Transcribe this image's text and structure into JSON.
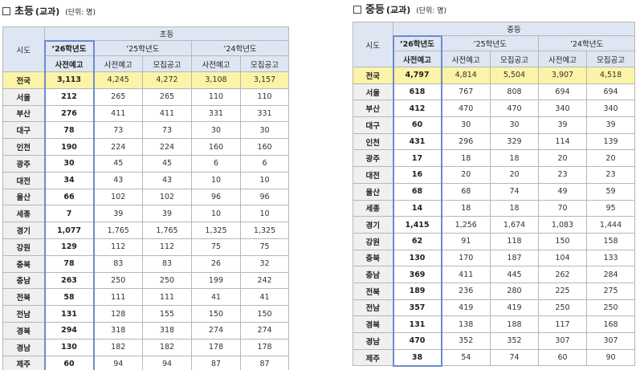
{
  "elementary": {
    "title": "초등",
    "subtitle": "(교과)",
    "unit": "(단위: 명)",
    "col_region": "시도",
    "col_group": "초등",
    "years": [
      "’26학년도",
      "’25학년도",
      "’24학년도"
    ],
    "sub_pre": "사전예고",
    "sub_rec": "모집공고",
    "rows": [
      {
        "r": "전국",
        "a": "3,113",
        "b": "4,245",
        "c": "4,272",
        "d": "3,108",
        "e": "3,157"
      },
      {
        "r": "서울",
        "a": "212",
        "b": "265",
        "c": "265",
        "d": "110",
        "e": "110"
      },
      {
        "r": "부산",
        "a": "276",
        "b": "411",
        "c": "411",
        "d": "331",
        "e": "331"
      },
      {
        "r": "대구",
        "a": "78",
        "b": "73",
        "c": "73",
        "d": "30",
        "e": "30"
      },
      {
        "r": "인천",
        "a": "190",
        "b": "224",
        "c": "224",
        "d": "160",
        "e": "160"
      },
      {
        "r": "광주",
        "a": "30",
        "b": "45",
        "c": "45",
        "d": "6",
        "e": "6"
      },
      {
        "r": "대전",
        "a": "34",
        "b": "43",
        "c": "43",
        "d": "10",
        "e": "10"
      },
      {
        "r": "울산",
        "a": "66",
        "b": "102",
        "c": "102",
        "d": "96",
        "e": "96"
      },
      {
        "r": "세종",
        "a": "7",
        "b": "39",
        "c": "39",
        "d": "10",
        "e": "10"
      },
      {
        "r": "경기",
        "a": "1,077",
        "b": "1,765",
        "c": "1,765",
        "d": "1,325",
        "e": "1,325"
      },
      {
        "r": "강원",
        "a": "129",
        "b": "112",
        "c": "112",
        "d": "75",
        "e": "75"
      },
      {
        "r": "충북",
        "a": "78",
        "b": "83",
        "c": "83",
        "d": "26",
        "e": "32"
      },
      {
        "r": "충남",
        "a": "263",
        "b": "250",
        "c": "250",
        "d": "199",
        "e": "242"
      },
      {
        "r": "전북",
        "a": "58",
        "b": "111",
        "c": "111",
        "d": "41",
        "e": "41"
      },
      {
        "r": "전남",
        "a": "131",
        "b": "128",
        "c": "155",
        "d": "150",
        "e": "150"
      },
      {
        "r": "경북",
        "a": "294",
        "b": "318",
        "c": "318",
        "d": "274",
        "e": "274"
      },
      {
        "r": "경남",
        "a": "130",
        "b": "182",
        "c": "182",
        "d": "178",
        "e": "178"
      },
      {
        "r": "제주",
        "a": "60",
        "b": "94",
        "c": "94",
        "d": "87",
        "e": "87"
      }
    ]
  },
  "secondary": {
    "title": "중등",
    "subtitle": "(교과)",
    "unit": "(단위: 명)",
    "col_region": "시도",
    "col_group": "중등",
    "years": [
      "’26학년도",
      "’25학년도",
      "’24학년도"
    ],
    "sub_pre": "사전예고",
    "sub_rec": "모집공고",
    "rows": [
      {
        "r": "전국",
        "a": "4,797",
        "b": "4,814",
        "c": "5,504",
        "d": "3,907",
        "e": "4,518"
      },
      {
        "r": "서울",
        "a": "618",
        "b": "767",
        "c": "808",
        "d": "694",
        "e": "694"
      },
      {
        "r": "부산",
        "a": "412",
        "b": "470",
        "c": "470",
        "d": "340",
        "e": "340"
      },
      {
        "r": "대구",
        "a": "60",
        "b": "30",
        "c": "30",
        "d": "39",
        "e": "39"
      },
      {
        "r": "인천",
        "a": "431",
        "b": "296",
        "c": "329",
        "d": "114",
        "e": "139"
      },
      {
        "r": "광주",
        "a": "17",
        "b": "18",
        "c": "18",
        "d": "20",
        "e": "20"
      },
      {
        "r": "대전",
        "a": "16",
        "b": "20",
        "c": "20",
        "d": "23",
        "e": "23"
      },
      {
        "r": "울산",
        "a": "68",
        "b": "68",
        "c": "74",
        "d": "49",
        "e": "59"
      },
      {
        "r": "세종",
        "a": "14",
        "b": "18",
        "c": "18",
        "d": "70",
        "e": "95"
      },
      {
        "r": "경기",
        "a": "1,415",
        "b": "1,256",
        "c": "1,674",
        "d": "1,083",
        "e": "1,444"
      },
      {
        "r": "강원",
        "a": "62",
        "b": "91",
        "c": "118",
        "d": "150",
        "e": "158"
      },
      {
        "r": "충북",
        "a": "130",
        "b": "170",
        "c": "187",
        "d": "104",
        "e": "133"
      },
      {
        "r": "충남",
        "a": "369",
        "b": "411",
        "c": "445",
        "d": "262",
        "e": "284"
      },
      {
        "r": "전북",
        "a": "189",
        "b": "236",
        "c": "280",
        "d": "225",
        "e": "275"
      },
      {
        "r": "전남",
        "a": "357",
        "b": "419",
        "c": "419",
        "d": "250",
        "e": "250"
      },
      {
        "r": "경북",
        "a": "131",
        "b": "138",
        "c": "188",
        "d": "117",
        "e": "168"
      },
      {
        "r": "경남",
        "a": "470",
        "b": "352",
        "c": "352",
        "d": "307",
        "e": "307"
      },
      {
        "r": "제주",
        "a": "38",
        "b": "54",
        "c": "74",
        "d": "60",
        "e": "90"
      }
    ]
  }
}
